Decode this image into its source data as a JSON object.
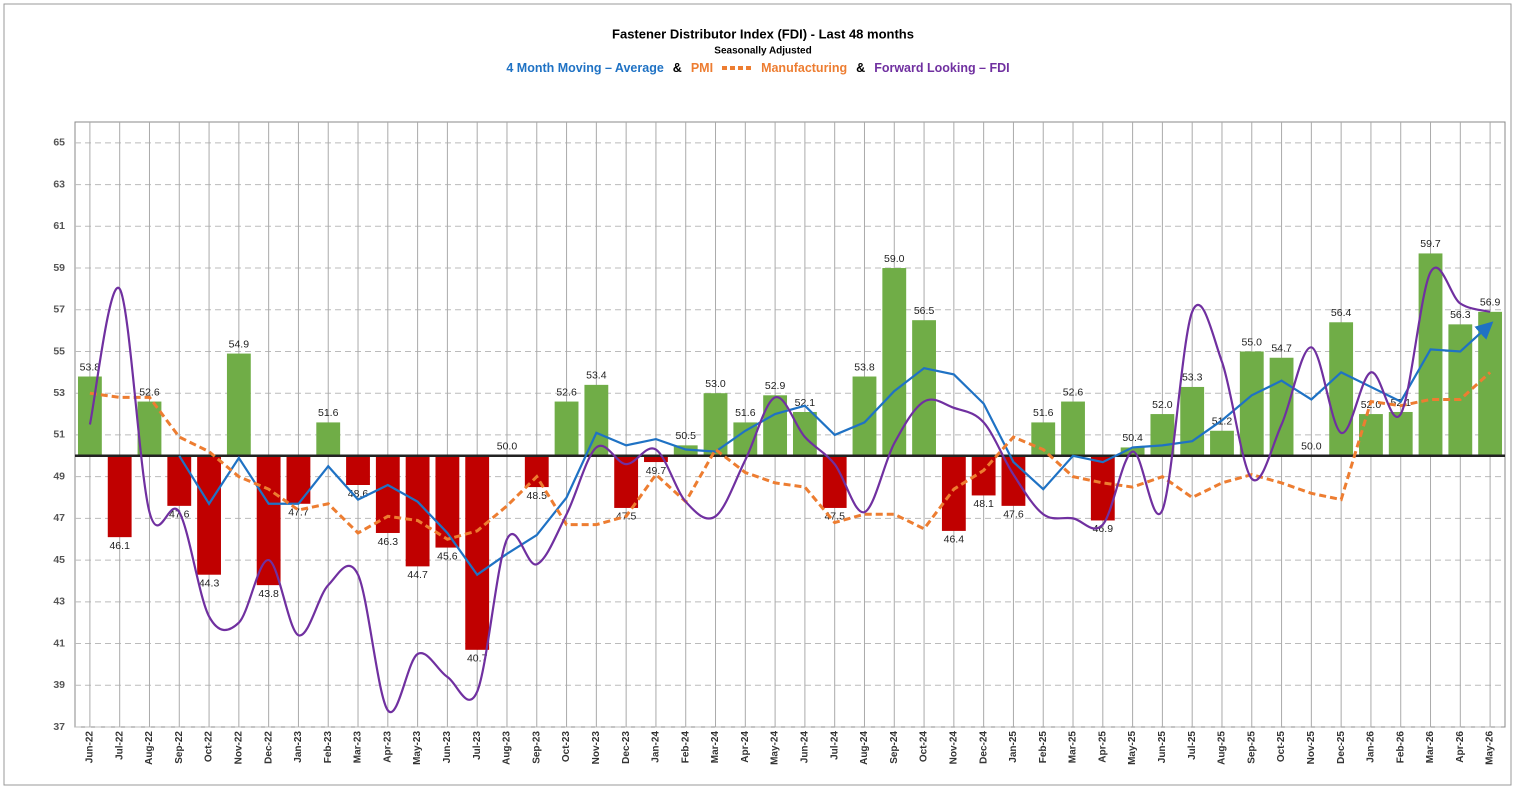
{
  "chart_data": {
    "type": "bar-line",
    "title": "Fastener Distributor Index (FDI) - Last 48 months",
    "subtitle": "Seasonally Adjusted",
    "legend_joiner": "&",
    "categories": [
      "Jun-22",
      "Jul-22",
      "Aug-22",
      "Sep-22",
      "Oct-22",
      "Nov-22",
      "Dec-22",
      "Jan-23",
      "Feb-23",
      "Mar-23",
      "Apr-23",
      "May-23",
      "Jun-23",
      "Jul-23",
      "Aug-23",
      "Sep-23",
      "Oct-23",
      "Nov-23",
      "Dec-23",
      "Jan-24",
      "Feb-24",
      "Mar-24",
      "Apr-24",
      "May-24",
      "Jun-24",
      "Jul-24",
      "Aug-24",
      "Sep-24",
      "Oct-24",
      "Nov-24",
      "Dec-24",
      "Jan-25",
      "Feb-25",
      "Mar-25",
      "Apr-25",
      "May-25",
      "Jun-25",
      "Jul-25",
      "Aug-25",
      "Sep-25",
      "Oct-25",
      "Nov-25",
      "Dec-25",
      "Jan-26",
      "Feb-26",
      "Mar-26",
      "Apr-26",
      "May-26"
    ],
    "baseline": 50,
    "bars": {
      "color_above": "#70ad47",
      "color_below": "#c00000",
      "values": [
        53.8,
        46.1,
        52.6,
        47.6,
        44.3,
        54.9,
        43.8,
        47.7,
        51.6,
        48.6,
        46.3,
        44.7,
        45.6,
        40.7,
        50.0,
        48.5,
        52.6,
        53.4,
        47.5,
        49.7,
        50.5,
        53.0,
        51.6,
        52.9,
        52.1,
        47.5,
        53.8,
        59.0,
        56.5,
        46.4,
        48.1,
        47.6,
        51.6,
        52.6,
        46.9,
        50.4,
        52.0,
        53.3,
        51.2,
        55.0,
        54.7,
        50.0,
        56.4,
        52.0,
        52.1,
        59.7,
        56.3,
        56.9
      ],
      "value_labels": [
        "53.8",
        "46.1",
        "52.6",
        "47.6",
        "44.3",
        "54.9",
        "43.8",
        "47.7",
        "51.6",
        "48.6",
        "46.3",
        "44.7",
        "45.6",
        "40.7",
        "50.0",
        "48.5",
        "52.6",
        "53.4",
        "47.5",
        "49.7",
        "50.5",
        "53.0",
        "51.6",
        "52.9",
        "52.1",
        "47.5",
        "53.8",
        "59.0",
        "56.5",
        "46.4",
        "48.1",
        "47.6",
        "51.6",
        "52.6",
        "46.9",
        "50.4",
        "52.0",
        "53.3",
        "51.2",
        "55.0",
        "54.7",
        "50.0",
        "56.4",
        "52.0",
        "52.1",
        "59.7",
        "56.3",
        "56.9"
      ]
    },
    "series": [
      {
        "name": "4 Month Moving – Average",
        "color": "#1f72c4",
        "style": "solid",
        "arrow": true,
        "values": [
          null,
          null,
          null,
          50.0,
          47.7,
          49.9,
          47.7,
          47.7,
          49.5,
          47.9,
          48.6,
          47.8,
          46.3,
          44.3,
          45.3,
          46.2,
          48.0,
          51.1,
          50.5,
          50.8,
          50.3,
          50.2,
          51.2,
          52.0,
          52.4,
          51.0,
          51.6,
          53.1,
          54.2,
          53.9,
          52.5,
          49.7,
          48.4,
          50.0,
          49.7,
          50.4,
          50.5,
          50.7,
          51.7,
          52.9,
          53.6,
          52.7,
          54.0,
          53.3,
          52.6,
          55.1,
          55.0,
          56.3
        ]
      },
      {
        "name": "PMI",
        "name_suffix": "Manufacturing",
        "color": "#ed7d31",
        "style": "dashed",
        "values": [
          53.0,
          52.8,
          52.8,
          50.9,
          50.2,
          49.0,
          48.4,
          47.4,
          47.7,
          46.3,
          47.1,
          46.9,
          46.0,
          46.4,
          47.6,
          49.0,
          46.7,
          46.7,
          47.1,
          49.1,
          47.8,
          50.3,
          49.2,
          48.7,
          48.5,
          46.8,
          47.2,
          47.2,
          46.5,
          48.4,
          49.3,
          50.9,
          50.3,
          49.0,
          48.7,
          48.5,
          49.0,
          48.0,
          48.7,
          49.1,
          48.7,
          48.2,
          47.9,
          52.6,
          52.4,
          52.7,
          52.7,
          54.0
        ]
      },
      {
        "name": "Forward Looking – FDI",
        "color": "#7030a0",
        "style": "smooth",
        "values": [
          51.5,
          58.0,
          47.3,
          47.3,
          42.3,
          42.0,
          45.0,
          41.4,
          43.8,
          44.3,
          37.8,
          40.5,
          39.4,
          38.7,
          46.0,
          44.8,
          47.2,
          50.4,
          49.6,
          50.3,
          47.8,
          47.1,
          49.8,
          52.8,
          50.9,
          49.6,
          47.3,
          50.6,
          52.6,
          52.3,
          51.6,
          49.1,
          47.2,
          47.0,
          46.7,
          50.2,
          47.4,
          56.9,
          54.5,
          48.9,
          51.5,
          55.2,
          51.1,
          54.0,
          52.0,
          58.8,
          57.3,
          56.9
        ]
      }
    ],
    "ylim": [
      37,
      66
    ],
    "yticks": [
      37,
      39,
      41,
      43,
      45,
      47,
      49,
      51,
      53,
      55,
      57,
      59,
      61,
      63,
      65
    ],
    "grid": true
  }
}
